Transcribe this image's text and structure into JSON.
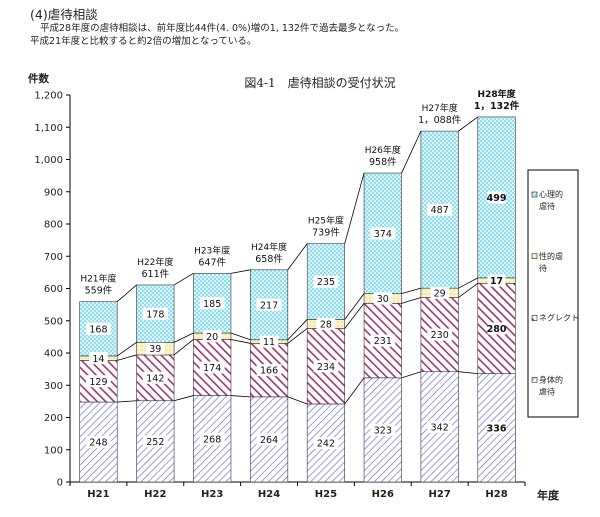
{
  "section": {
    "heading": "(4)虐待相談",
    "line1": "平成28年度の虐待相談は、前年度比44件(4. 0%)増の1, 132件で過去最多となった。",
    "line2": "平成21年度と比較すると約2倍の増加となっている。"
  },
  "chart_data": {
    "type": "bar",
    "stacked": true,
    "title": "図4-1　虐待相談の受付状況",
    "ylabel": "件数",
    "xlabel": "年度",
    "ylim": [
      0,
      1200
    ],
    "yticks": [
      "0",
      "100",
      "200",
      "300",
      "400",
      "500",
      "600",
      "700",
      "800",
      "900",
      "1,000",
      "1,100",
      "1,200"
    ],
    "grid": false,
    "legend_position": "right",
    "categories": [
      "H21",
      "H22",
      "H23",
      "H24",
      "H25",
      "H26",
      "H27",
      "H28"
    ],
    "totals": [
      {
        "line1": "H21年度",
        "line2": "559件"
      },
      {
        "line1": "H22年度",
        "line2": "611件"
      },
      {
        "line1": "H23年度",
        "line2": "647件"
      },
      {
        "line1": "H24年度",
        "line2": "658件"
      },
      {
        "line1": "H25年度",
        "line2": "739件"
      },
      {
        "line1": "H26年度",
        "line2": "958件"
      },
      {
        "line1": "H27年度",
        "line2": "1，088件"
      },
      {
        "line1": "H28年度",
        "line2": "1，132件"
      }
    ],
    "series": [
      {
        "name": "身体的虐待",
        "legend_lines": [
          "身体的",
          "虐待"
        ],
        "values": [
          248,
          252,
          268,
          264,
          242,
          323,
          342,
          336
        ],
        "color": "#6f73d8",
        "pattern": "physical"
      },
      {
        "name": "ネグレクト",
        "legend_lines": [
          "ネグレクト"
        ],
        "values": [
          129,
          142,
          174,
          166,
          234,
          231,
          230,
          280
        ],
        "color": "#9c3770",
        "pattern": "neglect"
      },
      {
        "name": "性的虐待",
        "legend_lines": [
          "性的虐",
          "待"
        ],
        "values": [
          14,
          39,
          20,
          11,
          28,
          30,
          29,
          17
        ],
        "color": "#f5e9a6",
        "pattern": "sexual"
      },
      {
        "name": "心理的虐待",
        "legend_lines": [
          "心理的",
          "虐待"
        ],
        "values": [
          168,
          178,
          185,
          217,
          235,
          374,
          487,
          499
        ],
        "color": "#3fc3dd",
        "pattern": "psych"
      }
    ]
  }
}
